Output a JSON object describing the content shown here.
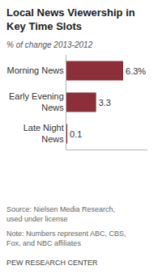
{
  "chart_data": {
    "type": "bar",
    "orientation": "horizontal",
    "title": "Local News Viewership in Key Time Slots",
    "subtitle": "% of change 2013-2012",
    "categories": [
      "Morning News",
      "Early Evening News",
      "Late Night News"
    ],
    "values": [
      6.3,
      3.3,
      0.1
    ],
    "value_labels": [
      "6.3%",
      "3.3",
      "0.1"
    ],
    "color": "#8c2f39",
    "xlim": [
      0,
      9
    ],
    "xticks": [],
    "grid": false,
    "data_labels": true,
    "tick_labels": "y",
    "source": "Source: Nielsen Media Research, used under license",
    "note": "Note: Numbers represent ABC, CBS, Fox, and NBC affiliates",
    "credit": "PEW RESEARCH CENTER"
  }
}
